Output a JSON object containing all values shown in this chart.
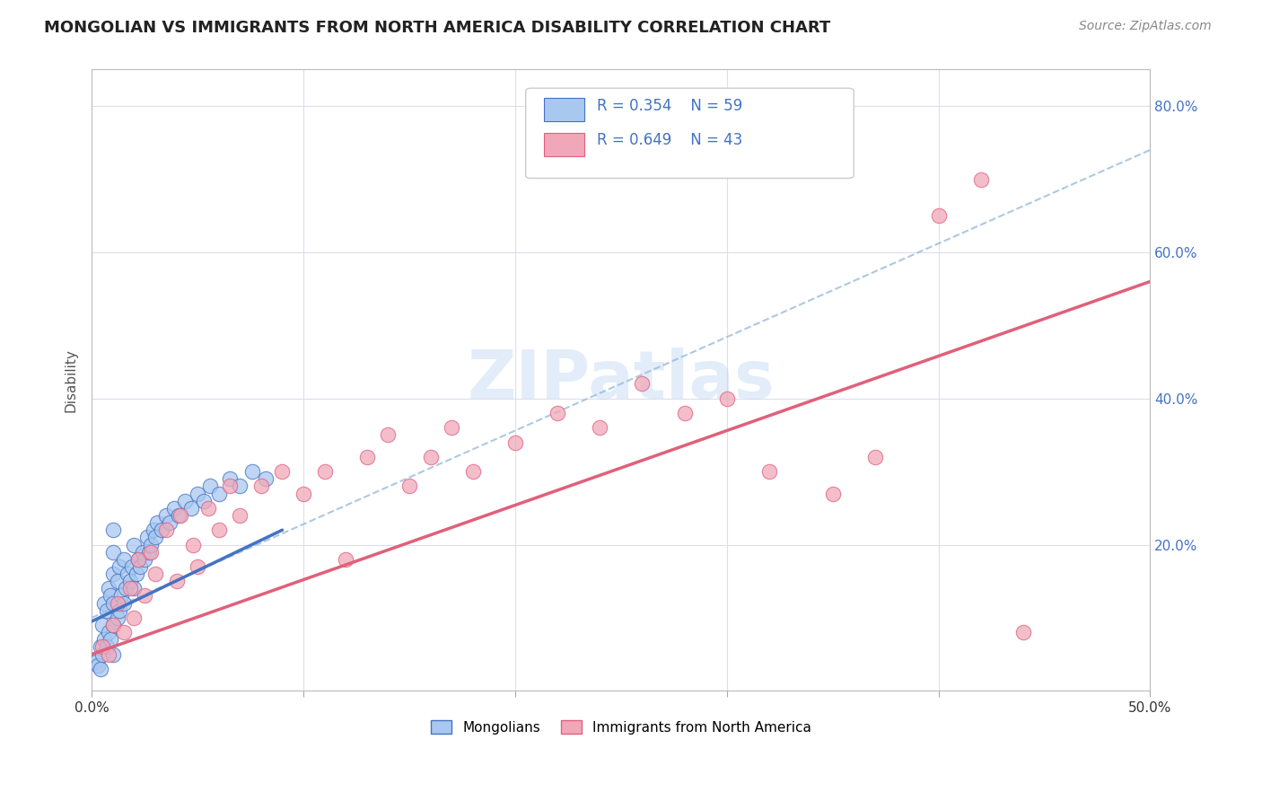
{
  "title": "MONGOLIAN VS IMMIGRANTS FROM NORTH AMERICA DISABILITY CORRELATION CHART",
  "source": "Source: ZipAtlas.com",
  "ylabel": "Disability",
  "x_range": [
    0.0,
    0.5
  ],
  "y_range": [
    0.0,
    0.85
  ],
  "color_blue": "#a8c8f0",
  "color_blue_dark": "#4472c4",
  "color_pink": "#f0a8b8",
  "color_pink_dark": "#e06080",
  "color_legend_text": "#4472c4",
  "watermark_text": "ZIPatlas",
  "mongolian_x": [
    0.002,
    0.003,
    0.004,
    0.004,
    0.005,
    0.005,
    0.006,
    0.006,
    0.007,
    0.007,
    0.008,
    0.008,
    0.009,
    0.009,
    0.01,
    0.01,
    0.01,
    0.01,
    0.01,
    0.01,
    0.012,
    0.012,
    0.013,
    0.013,
    0.014,
    0.015,
    0.015,
    0.016,
    0.017,
    0.018,
    0.019,
    0.02,
    0.02,
    0.021,
    0.022,
    0.023,
    0.024,
    0.025,
    0.026,
    0.027,
    0.028,
    0.029,
    0.03,
    0.031,
    0.033,
    0.035,
    0.037,
    0.039,
    0.041,
    0.044,
    0.047,
    0.05,
    0.053,
    0.056,
    0.06,
    0.065,
    0.07,
    0.076,
    0.082
  ],
  "mongolian_y": [
    0.04,
    0.035,
    0.03,
    0.06,
    0.05,
    0.09,
    0.07,
    0.12,
    0.06,
    0.11,
    0.08,
    0.14,
    0.07,
    0.13,
    0.05,
    0.09,
    0.12,
    0.16,
    0.19,
    0.22,
    0.1,
    0.15,
    0.11,
    0.17,
    0.13,
    0.12,
    0.18,
    0.14,
    0.16,
    0.15,
    0.17,
    0.14,
    0.2,
    0.16,
    0.18,
    0.17,
    0.19,
    0.18,
    0.21,
    0.19,
    0.2,
    0.22,
    0.21,
    0.23,
    0.22,
    0.24,
    0.23,
    0.25,
    0.24,
    0.26,
    0.25,
    0.27,
    0.26,
    0.28,
    0.27,
    0.29,
    0.28,
    0.3,
    0.29
  ],
  "immigrant_x": [
    0.005,
    0.008,
    0.01,
    0.012,
    0.015,
    0.018,
    0.02,
    0.022,
    0.025,
    0.028,
    0.03,
    0.035,
    0.04,
    0.042,
    0.048,
    0.05,
    0.055,
    0.06,
    0.065,
    0.07,
    0.08,
    0.09,
    0.1,
    0.11,
    0.12,
    0.13,
    0.14,
    0.15,
    0.16,
    0.17,
    0.18,
    0.2,
    0.22,
    0.24,
    0.26,
    0.28,
    0.3,
    0.32,
    0.35,
    0.37,
    0.4,
    0.42,
    0.44
  ],
  "immigrant_y": [
    0.06,
    0.05,
    0.09,
    0.12,
    0.08,
    0.14,
    0.1,
    0.18,
    0.13,
    0.19,
    0.16,
    0.22,
    0.15,
    0.24,
    0.2,
    0.17,
    0.25,
    0.22,
    0.28,
    0.24,
    0.28,
    0.3,
    0.27,
    0.3,
    0.18,
    0.32,
    0.35,
    0.28,
    0.32,
    0.36,
    0.3,
    0.34,
    0.38,
    0.36,
    0.42,
    0.38,
    0.4,
    0.3,
    0.27,
    0.32,
    0.65,
    0.7,
    0.08
  ],
  "mong_trend_x0": 0.0,
  "mong_trend_y0": 0.095,
  "mong_trend_x1": 0.09,
  "mong_trend_y1": 0.22,
  "immig_trend_x0": 0.0,
  "immig_trend_y0": 0.05,
  "immig_trend_x1": 0.5,
  "immig_trend_y1": 0.56,
  "dash_trend_x0": 0.0,
  "dash_trend_y0": 0.1,
  "dash_trend_x1": 0.5,
  "dash_trend_y1": 0.74
}
